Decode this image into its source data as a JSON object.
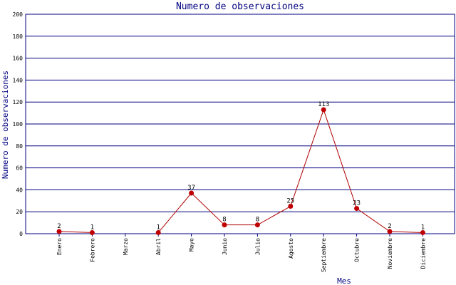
{
  "chart_data": {
    "type": "line",
    "title": "Numero de observaciones",
    "xlabel": "Mes",
    "ylabel": "Numero de observaciones",
    "ylim": [
      0,
      200
    ],
    "yticks": [
      0,
      20,
      40,
      60,
      80,
      100,
      120,
      140,
      160,
      180,
      200
    ],
    "grid": "horizontal",
    "categories": [
      "Enero",
      "Febrero",
      "Marzo",
      "Abril",
      "Mayo",
      "Junio",
      "Julio",
      "Agosto",
      "Septiembre",
      "Octubre",
      "Noviembre",
      "Diciembre"
    ],
    "values": [
      2,
      1,
      null,
      1,
      37,
      8,
      8,
      25,
      113,
      23,
      2,
      1
    ],
    "colors": {
      "line": "#b00000",
      "marker": "#c00000",
      "grid": "#000080",
      "axis": "#000080",
      "title": "#000080"
    }
  }
}
